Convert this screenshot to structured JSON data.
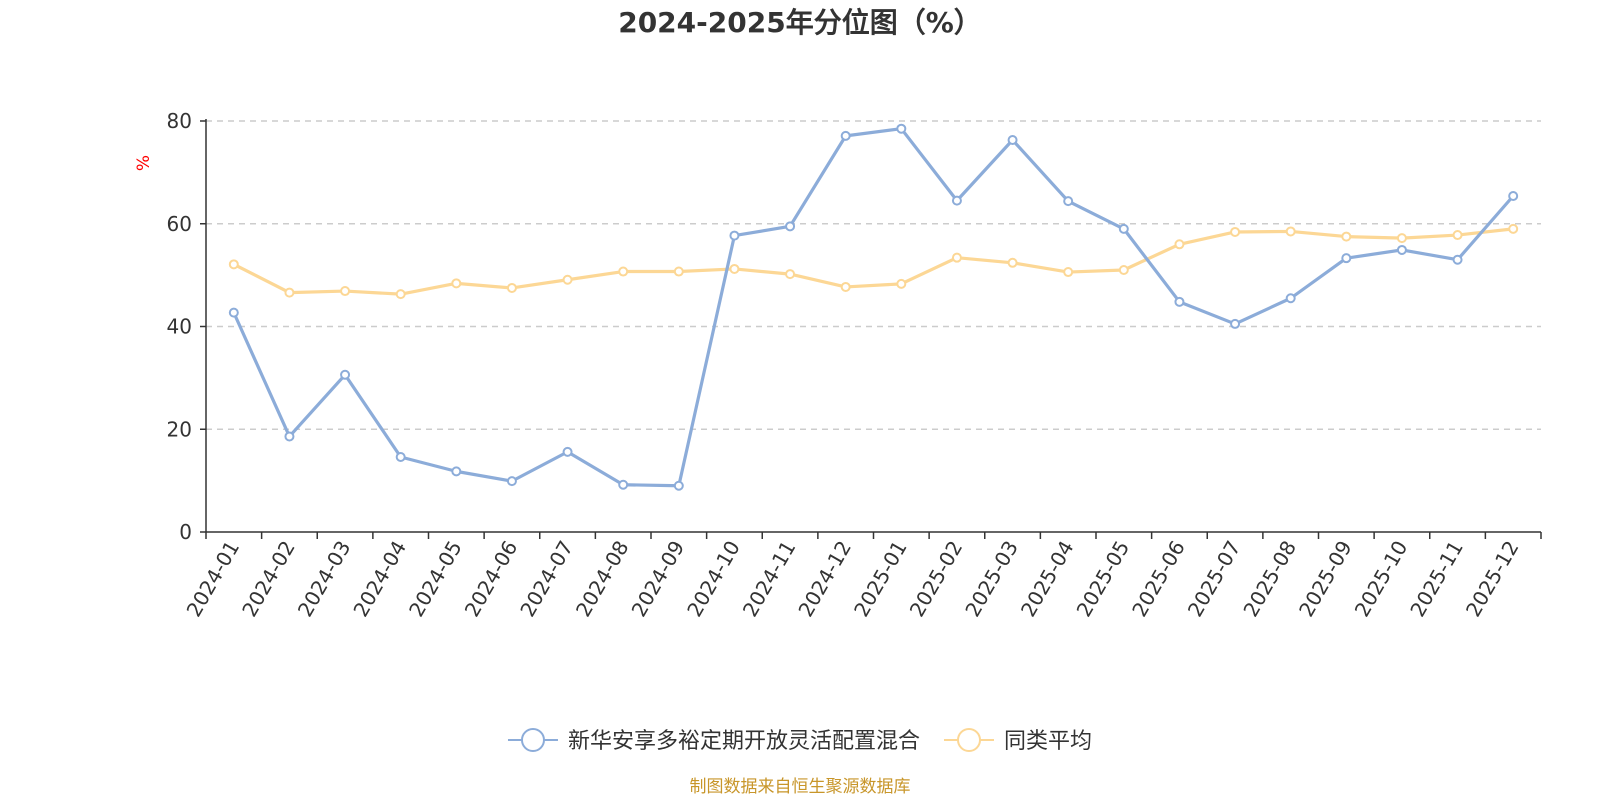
{
  "chart_data": {
    "type": "line",
    "title": "2024-2025年分位图（%）",
    "ylabel": "%",
    "xlabel": "",
    "ylim": [
      0,
      80
    ],
    "yticks": [
      0,
      20,
      40,
      60,
      80
    ],
    "grid": true,
    "legend_position": "bottom",
    "categories": [
      "2024-01",
      "2024-02",
      "2024-03",
      "2024-04",
      "2024-05",
      "2024-06",
      "2024-07",
      "2024-08",
      "2024-09",
      "2024-10",
      "2024-11",
      "2024-12",
      "2025-01",
      "2025-02",
      "2025-03",
      "2025-04",
      "2025-05",
      "2025-06",
      "2025-07",
      "2025-08",
      "2025-09",
      "2025-10",
      "2025-11",
      "2025-12"
    ],
    "series": [
      {
        "name": "新华安享多裕定期开放灵活配置混合",
        "color": "#8cacd9",
        "values": [
          42.7,
          18.6,
          30.6,
          14.6,
          11.8,
          9.9,
          15.6,
          9.2,
          9.0,
          57.7,
          59.5,
          77.1,
          78.5,
          64.5,
          76.3,
          64.4,
          59.0,
          44.8,
          40.5,
          45.5,
          53.3,
          54.9,
          53.0,
          65.4
        ]
      },
      {
        "name": "同类平均",
        "color": "#fcd795",
        "values": [
          52.1,
          46.6,
          46.9,
          46.3,
          48.4,
          47.5,
          49.1,
          50.7,
          50.7,
          51.2,
          50.2,
          47.7,
          48.3,
          53.4,
          52.4,
          50.6,
          51.0,
          56.0,
          58.4,
          58.5,
          57.5,
          57.2,
          57.8,
          59.0
        ]
      }
    ]
  },
  "footer": {
    "text": "制图数据来自恒生聚源数据库",
    "color": "#c8962a"
  },
  "axis_label_color": "#ff0000"
}
